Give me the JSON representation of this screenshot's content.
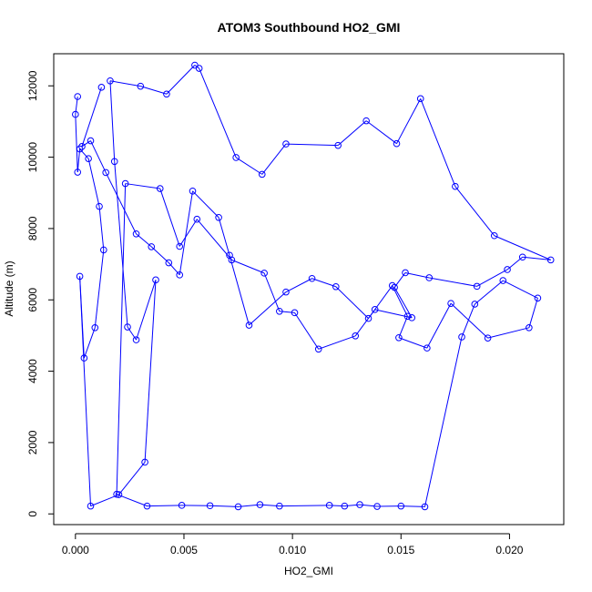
{
  "chart_data": {
    "type": "line",
    "title": "ATOM3 Southbound HO2_GMI",
    "xlabel": "HO2_GMI",
    "ylabel": "Altitude (m)",
    "xlim": [
      -0.001,
      0.0225
    ],
    "ylim": [
      -300,
      12900
    ],
    "xticks": [
      0.0,
      0.005,
      0.01,
      0.015,
      0.02
    ],
    "xtick_labels": [
      "0.000",
      "0.005",
      "0.010",
      "0.015",
      "0.020"
    ],
    "yticks": [
      0,
      2000,
      4000,
      6000,
      8000,
      10000,
      12000
    ],
    "ytick_labels": [
      "0",
      "2000",
      "4000",
      "6000",
      "8000",
      "10000",
      "12000"
    ],
    "grid": false,
    "legend": "none",
    "series_color": "#0000ff",
    "markers": "open-circle",
    "series": [
      {
        "x": [
          0.0001,
          0.0,
          0.0001,
          0.0002,
          0.0006,
          0.0011,
          0.0013,
          0.0009,
          0.0004,
          0.0002,
          0.0007,
          0.002,
          0.0032,
          0.0037,
          0.0028,
          0.0024,
          0.0018,
          0.0016,
          0.003,
          0.0042,
          0.0055,
          0.0057,
          0.0074,
          0.0086,
          0.0097,
          0.0121,
          0.0134,
          0.0148,
          0.0159,
          0.0175,
          0.0193,
          0.0219,
          0.0206,
          0.0199,
          0.0185,
          0.0163,
          0.0152,
          0.0147,
          0.0155,
          0.0138,
          0.0129,
          0.0112,
          0.0101,
          0.0094,
          0.0087,
          0.0072,
          0.0056,
          0.0048,
          0.0039,
          0.0023,
          0.0019,
          0.0033,
          0.0049,
          0.0062,
          0.0075,
          0.0085,
          0.0094,
          0.0117,
          0.0124,
          0.0131,
          0.0139,
          0.015,
          0.0161,
          0.0178,
          0.0184,
          0.0197,
          0.0213,
          0.0209,
          0.019,
          0.0173,
          0.0162,
          0.0149,
          0.0153,
          0.0146,
          0.0135,
          0.012,
          0.0109,
          0.0097,
          0.008,
          0.0071,
          0.0066,
          0.0054,
          0.0048,
          0.0043,
          0.0035,
          0.0028,
          0.0014,
          0.0007,
          0.0003,
          0.0012
        ],
        "y": [
          11700,
          11200,
          9580,
          10230,
          9960,
          8620,
          7400,
          5220,
          4370,
          6660,
          220,
          540,
          1450,
          6560,
          4880,
          5240,
          9880,
          12140,
          11990,
          11770,
          12580,
          12490,
          9990,
          9520,
          10370,
          10330,
          11020,
          10380,
          11640,
          9180,
          7800,
          7120,
          7200,
          6850,
          6380,
          6620,
          6760,
          6350,
          5500,
          5730,
          4990,
          4620,
          5640,
          5680,
          6750,
          7120,
          8260,
          7500,
          9120,
          9260,
          550,
          220,
          240,
          230,
          200,
          260,
          220,
          240,
          220,
          260,
          210,
          220,
          200,
          4960,
          5880,
          6540,
          6050,
          5220,
          4930,
          5900,
          4650,
          4940,
          5540,
          6400,
          5480,
          6370,
          6600,
          6220,
          5290,
          7250,
          8310,
          9050,
          6700,
          7040,
          7490,
          7850,
          9570,
          10460,
          10300,
          11960
        ]
      }
    ]
  }
}
